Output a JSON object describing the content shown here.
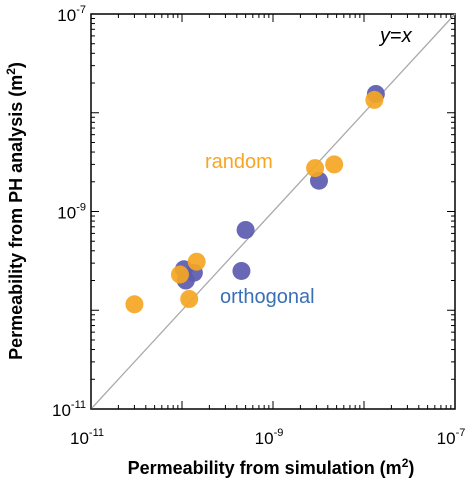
{
  "chart_data": {
    "type": "scatter",
    "x_scale": "log",
    "y_scale": "log",
    "xlim": [
      1e-11,
      1e-07
    ],
    "ylim": [
      1e-11,
      1e-07
    ],
    "grid": false,
    "xlabel": {
      "text": "Permeability from simulation (m",
      "sup": "2",
      "close": ")"
    },
    "ylabel": {
      "text": "Permeability from PH analysis (m",
      "sup": "2",
      "close": ")"
    },
    "x_ticks": [
      {
        "value": 1e-11,
        "base": "10",
        "exp": "-11"
      },
      {
        "value": 1e-09,
        "base": "10",
        "exp": "-9"
      },
      {
        "value": 1e-07,
        "base": "10",
        "exp": "-7"
      }
    ],
    "y_ticks": [
      {
        "value": 1e-11,
        "base": "10",
        "exp": "-11"
      },
      {
        "value": 1e-09,
        "base": "10",
        "exp": "-9"
      },
      {
        "value": 1e-07,
        "base": "10",
        "exp": "-7"
      }
    ],
    "reference_line": {
      "label_prefix": "y",
      "label_eq": "=",
      "label_suffix": "x",
      "color": "#aaaaaa"
    },
    "series": [
      {
        "name": "orthogonal",
        "color": "#5b5bb0",
        "points": [
          {
            "x": 1.05e-10,
            "y": 2.6e-10
          },
          {
            "x": 1.1e-10,
            "y": 2e-10
          },
          {
            "x": 1.35e-10,
            "y": 2.4e-10
          },
          {
            "x": 4.5e-10,
            "y": 2.5e-10
          },
          {
            "x": 5e-10,
            "y": 6.5e-10
          },
          {
            "x": 3.2e-09,
            "y": 2.05e-09
          },
          {
            "x": 1.35e-08,
            "y": 1.55e-08
          }
        ]
      },
      {
        "name": "random",
        "color": "#f5a623",
        "points": [
          {
            "x": 3e-11,
            "y": 1.15e-10
          },
          {
            "x": 9.5e-11,
            "y": 2.3e-10
          },
          {
            "x": 1.2e-10,
            "y": 1.3e-10
          },
          {
            "x": 1.45e-10,
            "y": 3.1e-10
          },
          {
            "x": 2.9e-09,
            "y": 2.75e-09
          },
          {
            "x": 4.7e-09,
            "y": 3e-09
          },
          {
            "x": 1.3e-08,
            "y": 1.35e-08
          }
        ]
      }
    ]
  }
}
